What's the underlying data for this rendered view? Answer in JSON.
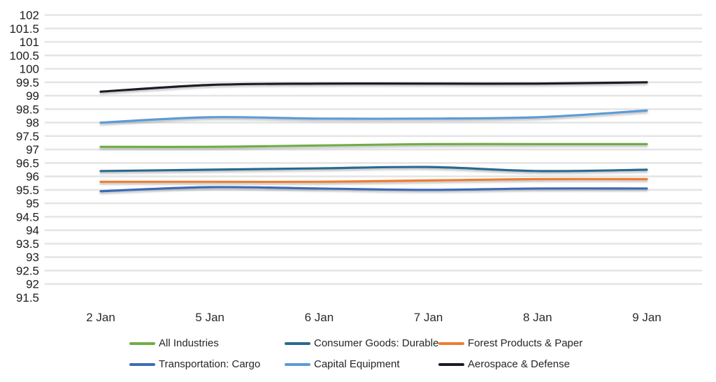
{
  "chart_data": {
    "type": "line",
    "smoothed_lines": true,
    "legend_position": "bottom",
    "grid": "horizontal",
    "x_categories": [
      "2 Jan",
      "5 Jan",
      "6 Jan",
      "7 Jan",
      "8 Jan",
      "9 Jan"
    ],
    "y_axis": {
      "min": 91.5,
      "max": 102,
      "step": 0.5,
      "tick_labels": [
        "102",
        "101.5",
        "101",
        "100.5",
        "100",
        "99.5",
        "99",
        "98.5",
        "98",
        "97.5",
        "97",
        "96.5",
        "96",
        "95.5",
        "95",
        "94.5",
        "94",
        "93.5",
        "93",
        "92.5",
        "92",
        "91.5"
      ],
      "lowest_gridline_value": 92
    },
    "series": [
      {
        "name": "All Industries",
        "color": "#70AD47",
        "values": [
          97.1,
          97.1,
          97.15,
          97.2,
          97.2,
          97.2
        ]
      },
      {
        "name": "Consumer Goods: Durable",
        "color": "#2A6A8E",
        "values": [
          96.2,
          96.25,
          96.3,
          96.35,
          96.2,
          96.25
        ]
      },
      {
        "name": "Forest Products & Paper",
        "color": "#ED7D31",
        "values": [
          95.8,
          95.8,
          95.8,
          95.85,
          95.9,
          95.9
        ]
      },
      {
        "name": "Transportation: Cargo",
        "color": "#3E6BB5",
        "values": [
          95.45,
          95.6,
          95.55,
          95.5,
          95.55,
          95.55
        ]
      },
      {
        "name": "Capital Equipment",
        "color": "#5B9BD5",
        "values": [
          98.0,
          98.2,
          98.15,
          98.15,
          98.2,
          98.45
        ]
      },
      {
        "name": "Aerospace & Defense",
        "color": "#1B1B26",
        "values": [
          99.15,
          99.4,
          99.45,
          99.45,
          99.45,
          99.5
        ]
      }
    ],
    "gridline_color": "#e5e5e5"
  }
}
